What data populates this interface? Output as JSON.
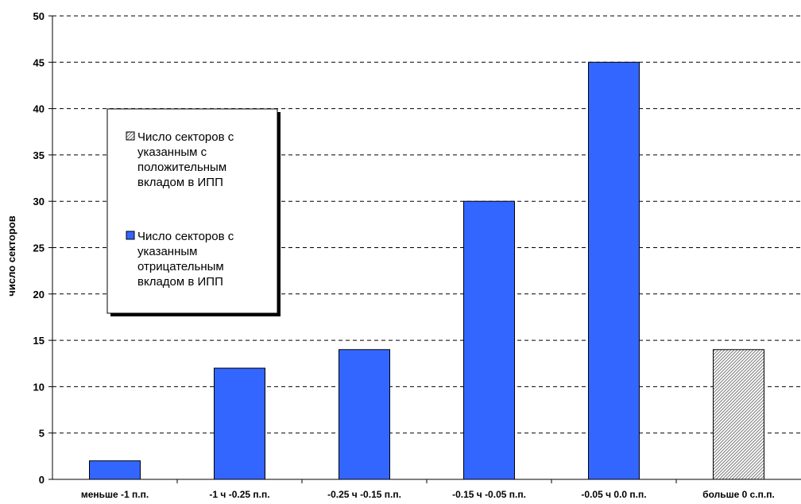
{
  "chart_data": {
    "type": "bar",
    "title": "",
    "xlabel": "",
    "ylabel": "число секторов",
    "ylim": [
      0,
      50
    ],
    "yticks": [
      0,
      5,
      10,
      15,
      20,
      25,
      30,
      35,
      40,
      45,
      50
    ],
    "grid": true,
    "legend_position": "upper-left",
    "categories": [
      "меньше -1 п.п.",
      "-1 ч -0.25 п.п.",
      "-0.25 ч -0.15 п.п.",
      "-0.15 ч -0.05 п.п.",
      "-0.05 ч 0.0 п.п.",
      "больше 0 с.п.п."
    ],
    "series": [
      {
        "name": "Число секторов с указанным с положительным вкладом в ИПП",
        "legend_lines": [
          "Число секторов с",
          "указанным с",
          "положительным",
          "вкладом в ИПП"
        ],
        "color": "#c8c8c8",
        "pattern": "diagonal-hatch",
        "values": [
          null,
          null,
          null,
          null,
          null,
          14
        ]
      },
      {
        "name": "Число секторов с указанным отрицательным вкладом в ИПП",
        "legend_lines": [
          "Число секторов с",
          "указанным",
          "отрицательным",
          "вкладом в ИПП"
        ],
        "color": "#3366ff",
        "pattern": "solid",
        "values": [
          2,
          12,
          14,
          30,
          45,
          null
        ]
      }
    ]
  }
}
